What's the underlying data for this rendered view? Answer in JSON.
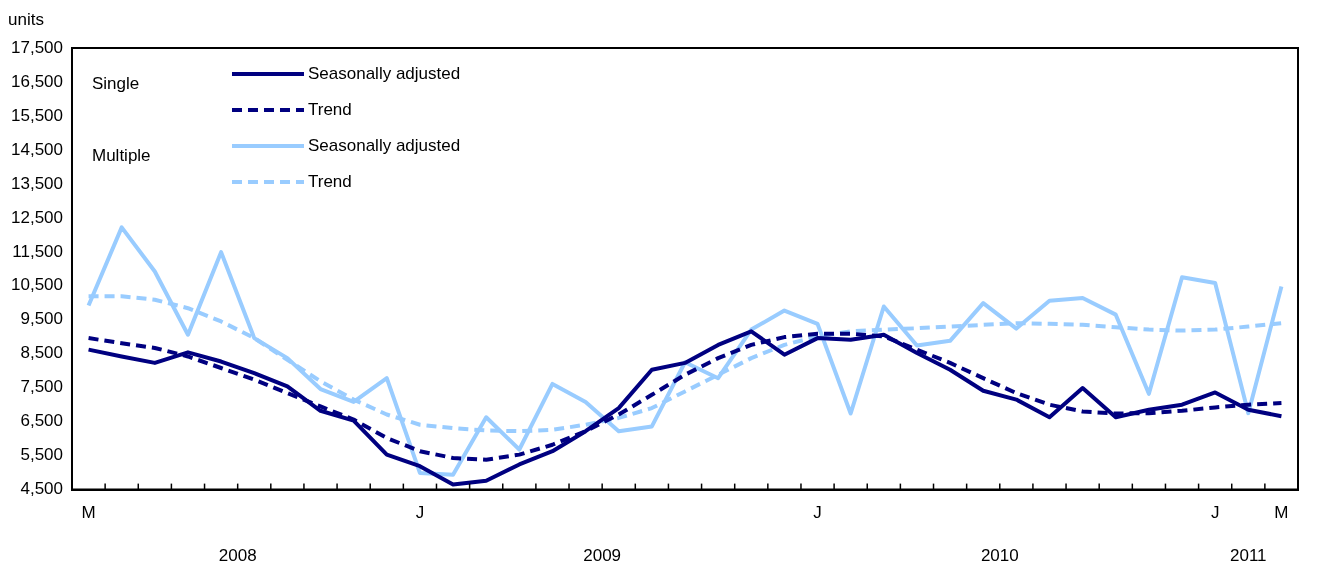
{
  "chart_data": {
    "type": "line",
    "ylabel": "units",
    "categories": [
      "M",
      null,
      null,
      null,
      null,
      null,
      null,
      null,
      null,
      null,
      "J",
      null,
      null,
      null,
      null,
      null,
      null,
      null,
      null,
      null,
      null,
      null,
      "J",
      null,
      null,
      null,
      null,
      null,
      null,
      null,
      null,
      null,
      null,
      null,
      "J",
      null,
      "M"
    ],
    "series": [
      {
        "name": "Seasonally adjusted",
        "color": "#000080",
        "line_style": "solid",
        "values": [
          8620,
          8420,
          8230,
          8540,
          8270,
          7930,
          7540,
          6820,
          6530,
          5530,
          5190,
          4650,
          4760,
          5240,
          5630,
          6220,
          6900,
          8030,
          8230,
          8760,
          9160,
          8470,
          8960,
          8910,
          9060,
          8520,
          8030,
          7410,
          7150,
          6630,
          7490,
          6630,
          6850,
          7000,
          7360,
          6850,
          6660
        ]
      },
      {
        "name": "Trend",
        "color": "#000080",
        "line_style": "dashed",
        "values": [
          8960,
          8810,
          8670,
          8420,
          8080,
          7740,
          7340,
          6950,
          6560,
          6020,
          5630,
          5430,
          5380,
          5530,
          5820,
          6220,
          6710,
          7290,
          7880,
          8370,
          8760,
          8990,
          9090,
          9090,
          9010,
          8620,
          8230,
          7780,
          7340,
          7000,
          6800,
          6740,
          6750,
          6820,
          6920,
          7000,
          7050
        ]
      },
      {
        "name": "Seasonally adjusted",
        "color": "#99ccff",
        "line_style": "solid",
        "values": [
          9920,
          12220,
          10920,
          9060,
          11490,
          8960,
          8370,
          7460,
          7080,
          7780,
          4990,
          4940,
          6630,
          5680,
          7610,
          7080,
          6220,
          6360,
          8250,
          7780,
          9210,
          9770,
          9380,
          6740,
          9890,
          8740,
          8880,
          9990,
          9240,
          10060,
          10140,
          9650,
          7320,
          10750,
          10580,
          6750,
          10480
        ]
      },
      {
        "name": "Trend",
        "color": "#99ccff",
        "line_style": "dashed",
        "values": [
          10190,
          10190,
          10090,
          9840,
          9450,
          8960,
          8320,
          7690,
          7150,
          6710,
          6410,
          6310,
          6240,
          6220,
          6260,
          6410,
          6610,
          6900,
          7390,
          7880,
          8370,
          8760,
          9010,
          9160,
          9210,
          9250,
          9300,
          9350,
          9400,
          9380,
          9350,
          9280,
          9210,
          9180,
          9210,
          9300,
          9400
        ]
      }
    ],
    "ylim": [
      4500,
      17500
    ],
    "yticks": [
      {
        "value": 4500,
        "label": "4,500"
      },
      {
        "value": 5500,
        "label": "5,500"
      },
      {
        "value": 6500,
        "label": "6,500"
      },
      {
        "value": 7500,
        "label": "7,500"
      },
      {
        "value": 8500,
        "label": "8,500"
      },
      {
        "value": 9500,
        "label": "9,500"
      },
      {
        "value": 10500,
        "label": "10,500"
      },
      {
        "value": 11500,
        "label": "11,500"
      },
      {
        "value": 12500,
        "label": "12,500"
      },
      {
        "value": 13500,
        "label": "13,500"
      },
      {
        "value": 14500,
        "label": "14,500"
      },
      {
        "value": 15500,
        "label": "15,500"
      },
      {
        "value": 16500,
        "label": "16,500"
      },
      {
        "value": 17500,
        "label": "17,500"
      }
    ],
    "annotations": [
      "Single",
      "Multiple",
      "2008",
      "2009",
      "2010",
      "2011"
    ],
    "grid": false,
    "legend": "top left",
    "marker": "none"
  }
}
